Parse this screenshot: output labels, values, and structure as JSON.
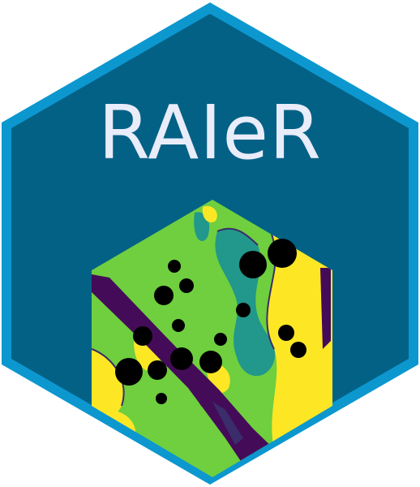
{
  "logo": {
    "title": "RAIeR",
    "colors": {
      "border": "#0c97cf",
      "background": "#036186",
      "title": "#e9ecf9",
      "map_green": "#6fcf3e",
      "map_yellow": "#fde725",
      "map_teal": "#22978b",
      "map_purple": "#440c58",
      "map_outline": "#3b2d6b",
      "points": "#000000"
    }
  }
}
